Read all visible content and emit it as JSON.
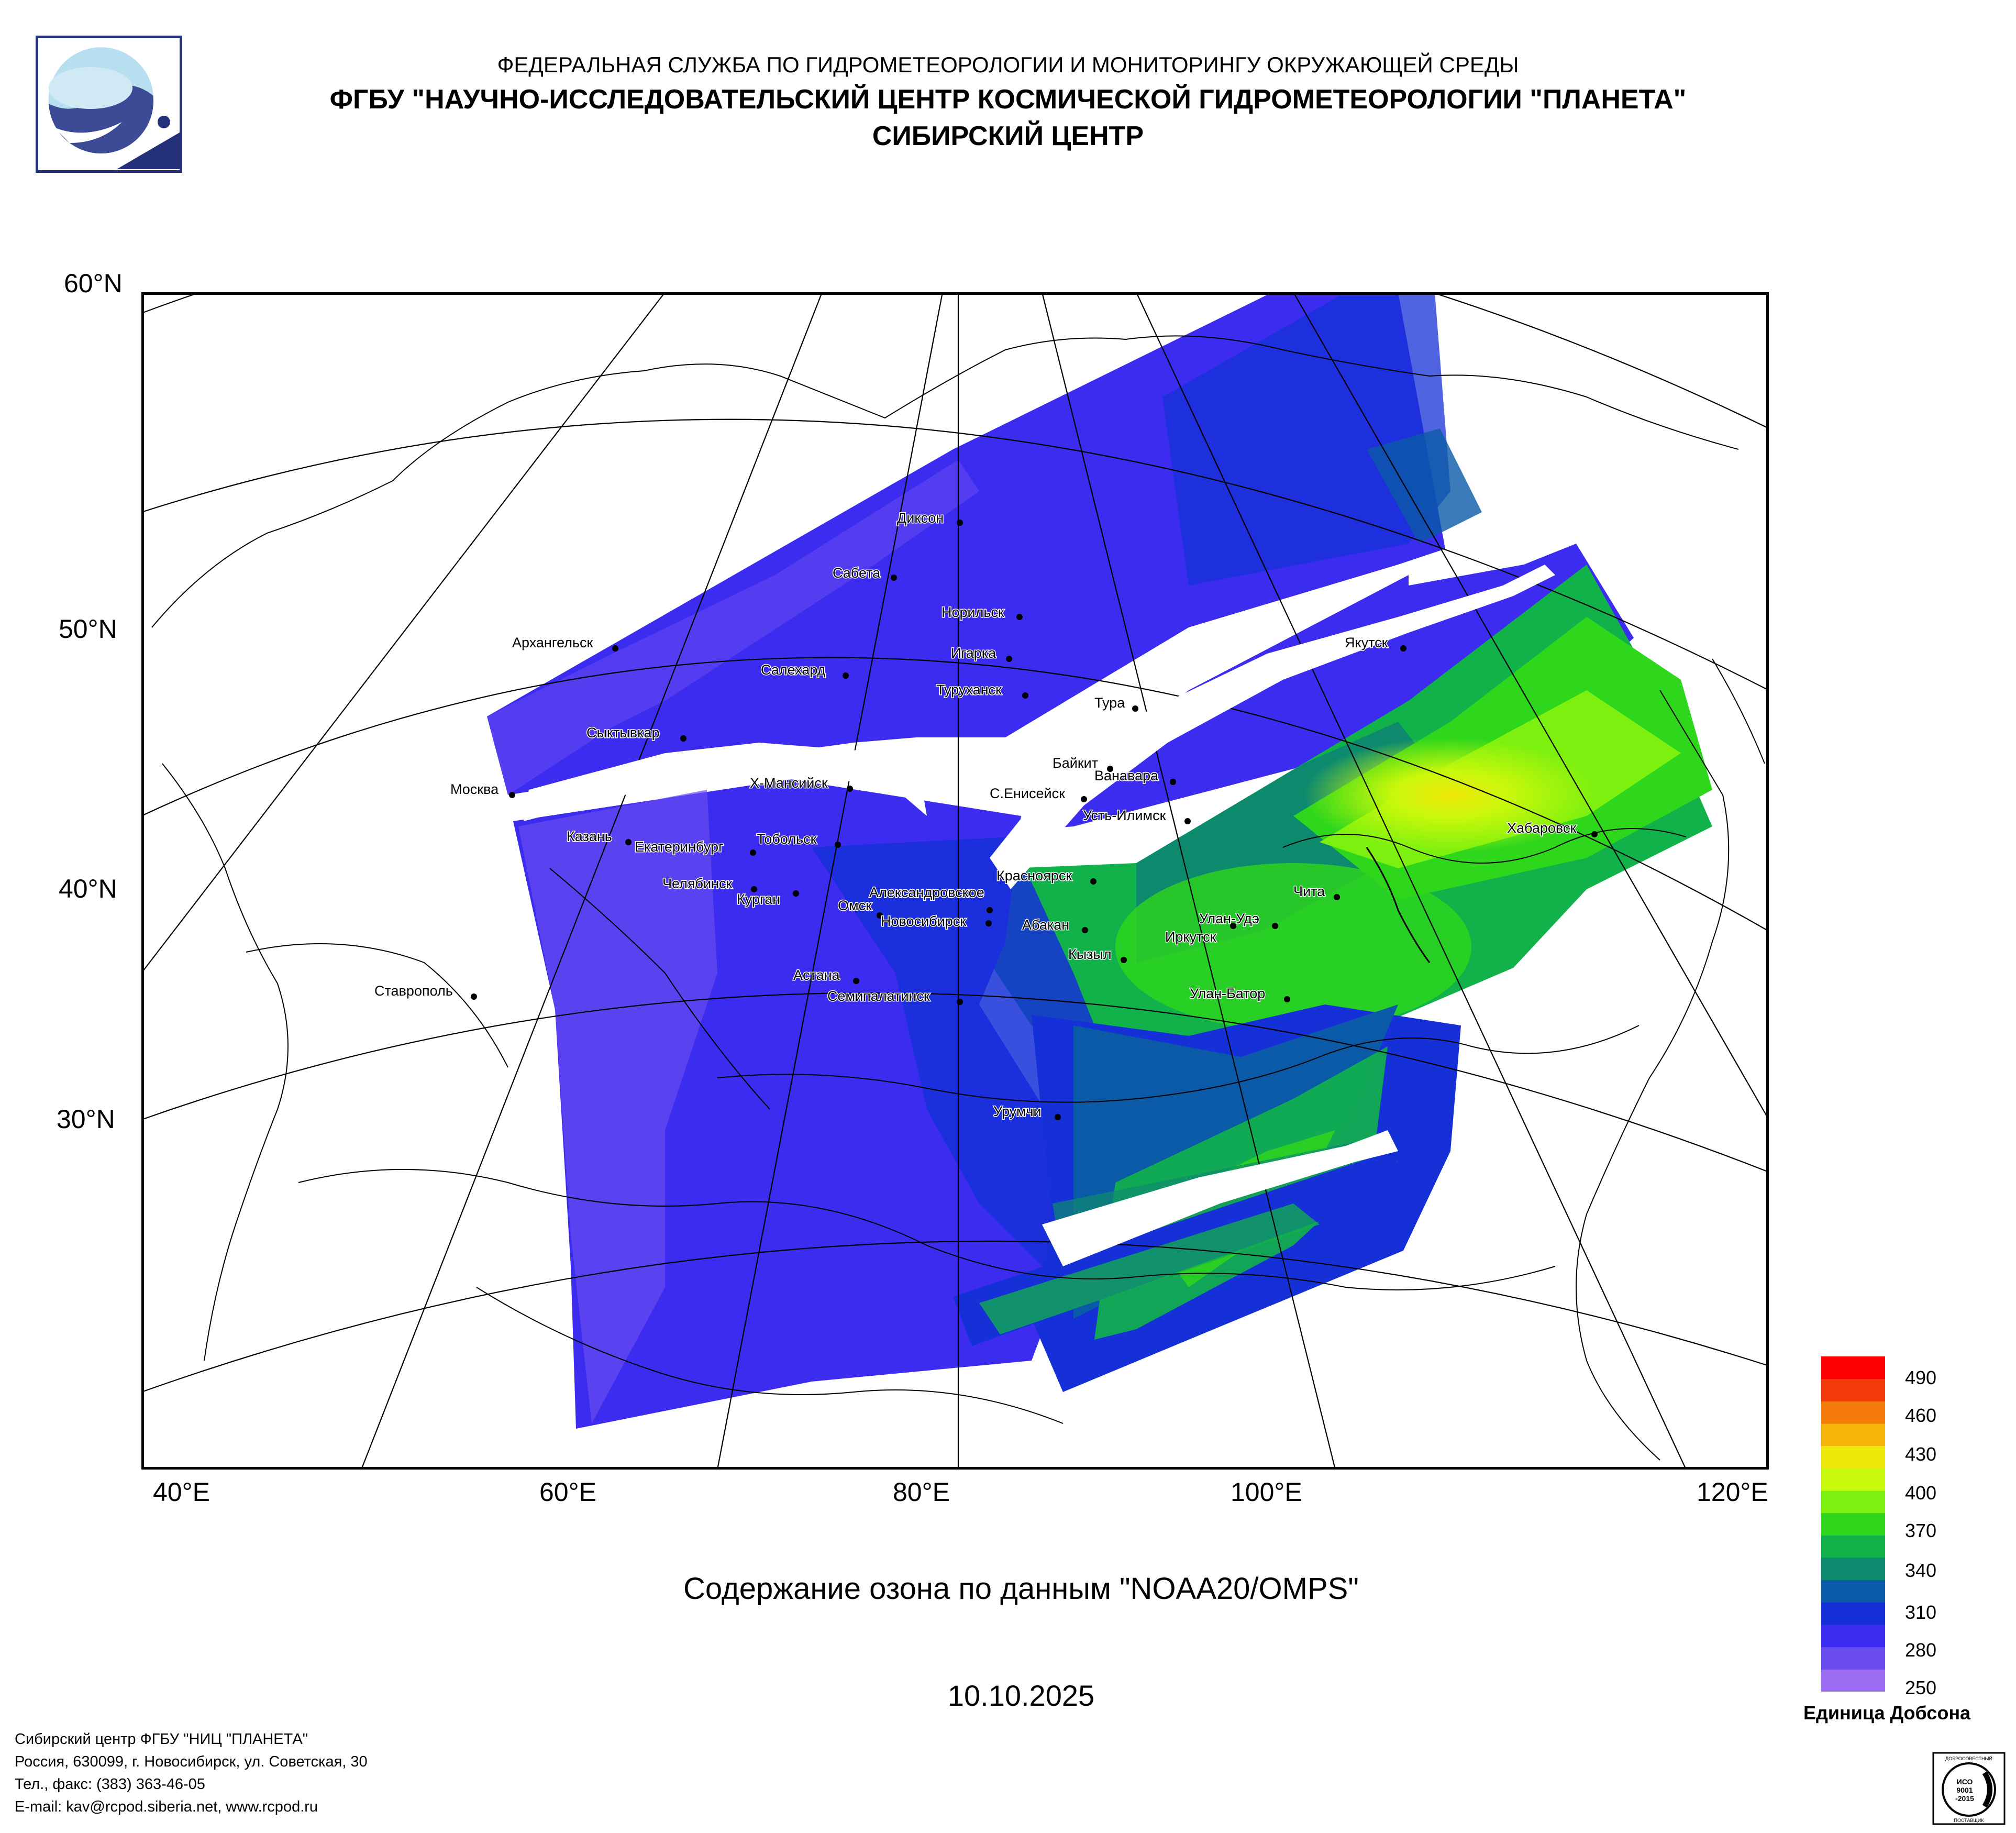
{
  "header": {
    "line1": "ФЕДЕРАЛЬНАЯ СЛУЖБА ПО ГИДРОМЕТЕОРОЛОГИИ И МОНИТОРИНГУ ОКРУЖАЮЩЕЙ СРЕДЫ",
    "line2": "ФГБУ \"НАУЧНО-ИССЛЕДОВАТЕЛЬСКИЙ ЦЕНТР КОСМИЧЕСКОЙ ГИДРОМЕТЕОРОЛОГИИ \"ПЛАНЕТА\"",
    "line3": "СИБИРСКИЙ ЦЕНТР"
  },
  "map": {
    "lat_labels": [
      "60°N",
      "50°N",
      "40°N",
      "30°N"
    ],
    "lon_labels": [
      "40°E",
      "60°E",
      "80°E",
      "100°E",
      "120°E"
    ],
    "cities": [
      {
        "name": "Диксон"
      },
      {
        "name": "Сабета"
      },
      {
        "name": "Норильск"
      },
      {
        "name": "Игарка"
      },
      {
        "name": "Салехард"
      },
      {
        "name": "Туруханск"
      },
      {
        "name": "Архангельск"
      },
      {
        "name": "Тура"
      },
      {
        "name": "Якутск"
      },
      {
        "name": "Сыктывкар"
      },
      {
        "name": "Байкит"
      },
      {
        "name": "Ванавара"
      },
      {
        "name": "Москва"
      },
      {
        "name": "Х-Мансийск"
      },
      {
        "name": "С.Енисейск"
      },
      {
        "name": "Усть-Илимск"
      },
      {
        "name": "Хабаровск"
      },
      {
        "name": "Казань"
      },
      {
        "name": "Екатеринбург"
      },
      {
        "name": "Тобольск"
      },
      {
        "name": "Красноярск"
      },
      {
        "name": "Челябинск"
      },
      {
        "name": "Курган"
      },
      {
        "name": "Александровское"
      },
      {
        "name": "Чита"
      },
      {
        "name": "Омск"
      },
      {
        "name": "Новосибирск"
      },
      {
        "name": "Абакан"
      },
      {
        "name": "Улан-Удэ"
      },
      {
        "name": "Иркутск"
      },
      {
        "name": "Кызыл"
      },
      {
        "name": "Астана"
      },
      {
        "name": "Ставрополь"
      },
      {
        "name": "Семипалатинск"
      },
      {
        "name": "Улан-Батор"
      },
      {
        "name": "Урумчи"
      }
    ]
  },
  "caption": "Содержание озона по данным \"NOAA20/OMPS\"",
  "date": "10.10.2025",
  "legend": {
    "ticks": [
      "490",
      "460",
      "430",
      "400",
      "370",
      "340",
      "310",
      "280",
      "250"
    ],
    "unit": "Единица Добсона",
    "colors": [
      "#9b6cf2",
      "#6a4cf0",
      "#3b2cf0",
      "#1630d8",
      "#0a5aa8",
      "#0d8a6e",
      "#12b24a",
      "#2ed61c",
      "#7cf00f",
      "#c8f80a",
      "#f0e80a",
      "#f6b40a",
      "#f47a0a",
      "#f23a0a",
      "#ff0000"
    ]
  },
  "footer": {
    "line1": "Сибирский центр ФГБУ \"НИЦ \"ПЛАНЕТА\"",
    "line2": "Россия, 630099, г. Новосибирск, ул. Советская, 30",
    "line3": "Тел., факс: (383) 363-46-05",
    "line4": "E-mail: kav@rcpod.siberia.net, www.rcpod.ru"
  },
  "iso_badge": {
    "top": "ДОБРОСОВЕСТНЫЙ",
    "mid1": "ИСО",
    "mid2": "9001",
    "mid3": "-2015",
    "bottom": "ПОСТАВЩИК"
  }
}
